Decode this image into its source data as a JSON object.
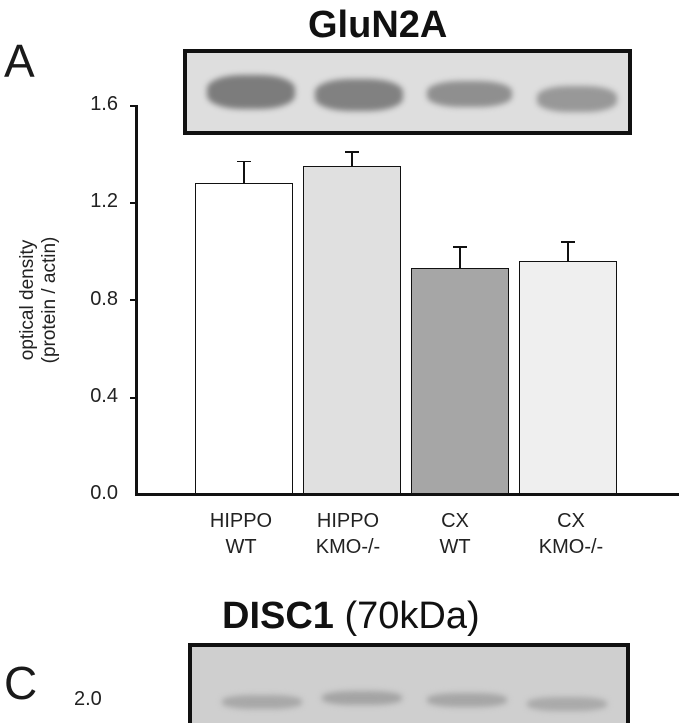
{
  "panels": {
    "a": {
      "letter": "A",
      "title": "GluN2A",
      "blot": {
        "lanes": 4,
        "band_intensity": [
          0.9,
          0.85,
          0.7,
          0.6
        ]
      }
    },
    "c": {
      "letter": "C",
      "title_bold": "DISC1",
      "title_rest": " (70kDa)",
      "partial_tick": "2.0"
    }
  },
  "axis": {
    "ylabel_line1": "optical density",
    "ylabel_line2": "(protein / actin)",
    "ticks": [
      "1.6",
      "1.2",
      "0.8",
      "0.4",
      "0.0"
    ]
  },
  "groups": [
    {
      "line1": "HIPPO",
      "line2": "WT",
      "color": "#ffffff"
    },
    {
      "line1": "HIPPO",
      "line2": "KMO-/-",
      "color": "#e0e0e0"
    },
    {
      "line1": "CX",
      "line2": "WT",
      "color": "#a6a6a6"
    },
    {
      "line1": "CX",
      "line2": "KMO-/-",
      "color": "#efefef"
    }
  ],
  "chart_data": {
    "type": "bar",
    "title": "GluN2A",
    "categories": [
      "HIPPO WT",
      "HIPPO KMO-/-",
      "CX WT",
      "CX KMO-/-"
    ],
    "values": [
      1.28,
      1.35,
      0.93,
      0.96
    ],
    "error_upper": [
      0.09,
      0.06,
      0.09,
      0.08
    ],
    "xlabel": "",
    "ylabel": "optical density (protein / actin)",
    "ylim": [
      0.0,
      1.6
    ],
    "yticks": [
      0.0,
      0.4,
      0.8,
      1.2,
      1.6
    ],
    "grid": false,
    "legend": null,
    "bar_colors": [
      "#ffffff",
      "#e0e0e0",
      "#a6a6a6",
      "#efefef"
    ]
  }
}
